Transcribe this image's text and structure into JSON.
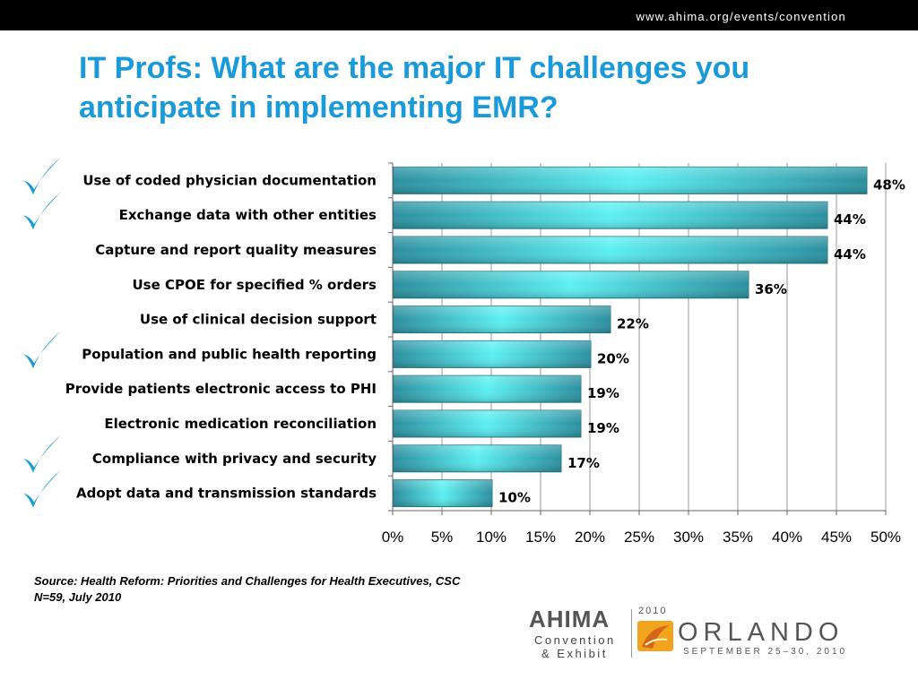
{
  "header": {
    "url": "www.ahima.org/events/convention"
  },
  "title": "IT Profs:  What are the major IT challenges you anticipate in implementing EMR?",
  "chart_data": {
    "type": "bar",
    "orientation": "horizontal",
    "categories": [
      "Use of coded physician documentation",
      "Exchange data with other entities",
      "Capture and report quality measures",
      "Use CPOE for specified % orders",
      "Use of clinical decision support",
      "Population and public health reporting",
      "Provide patients electronic access to PHI",
      "Electronic medication reconciliation",
      "Compliance with privacy and security",
      "Adopt data and transmission standards"
    ],
    "values": [
      48,
      44,
      44,
      36,
      22,
      20,
      19,
      19,
      17,
      10
    ],
    "value_labels": [
      "48%",
      "44%",
      "44%",
      "36%",
      "22%",
      "20%",
      "19%",
      "19%",
      "17%",
      "10%"
    ],
    "checkmarked": [
      true,
      true,
      false,
      false,
      false,
      true,
      false,
      false,
      true,
      true
    ],
    "xlim": [
      0,
      50
    ],
    "xticks": [
      "0%",
      "5%",
      "10%",
      "15%",
      "20%",
      "25%",
      "30%",
      "35%",
      "40%",
      "45%",
      "50%"
    ],
    "grid": true,
    "colors": {
      "bar_edge": "#2b8f9e",
      "bar_center": "#5cf0f3",
      "check": "#1a9ad9"
    }
  },
  "footer": {
    "source_line1": "Source:  Health Reform: Priorities and Challenges for Health Executives, CSC",
    "source_line2": "N=59,  July 2010"
  },
  "logo": {
    "word": "AHIMA",
    "line1": "Convention",
    "line2": "& Exhibit",
    "year": "2010",
    "city": "ORLANDO",
    "dates": "SEPTEMBER 25–30, 2010"
  }
}
